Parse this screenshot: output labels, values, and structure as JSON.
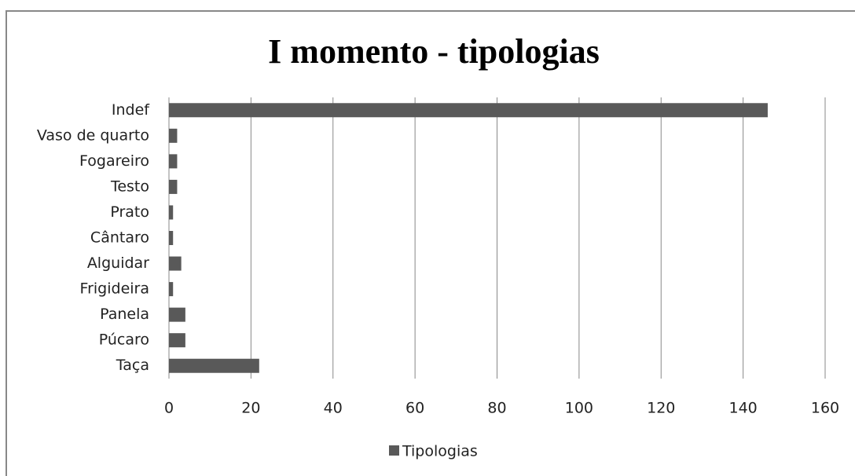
{
  "chart_data": {
    "type": "bar",
    "orientation": "horizontal",
    "title": "I momento - tipologias",
    "categories": [
      "Indef",
      "Vaso de quarto",
      "Fogareiro",
      "Testo",
      "Prato",
      "Cântaro",
      "Alguidar",
      "Frigideira",
      "Panela",
      "Púcaro",
      "Taça"
    ],
    "series": [
      {
        "name": "Tipologias",
        "color": "#595959",
        "values": [
          146,
          2,
          2,
          2,
          1,
          1,
          3,
          1,
          4,
          4,
          22
        ]
      }
    ],
    "xlim": [
      0,
      160
    ],
    "xticks": [
      0,
      20,
      40,
      60,
      80,
      100,
      120,
      140,
      160
    ],
    "grid": true,
    "legend": "bottom"
  }
}
